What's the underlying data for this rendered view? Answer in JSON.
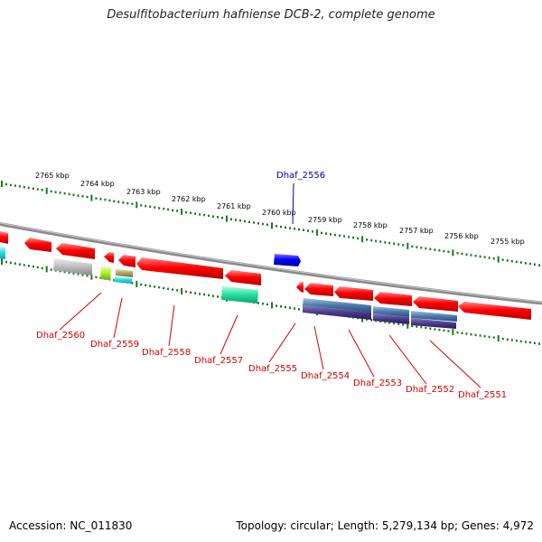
{
  "title": "Desulfitobacterium hafniense DCB-2, complete genome",
  "footer": {
    "accession": "Accession: NC_011830",
    "summary": "Topology: circular; Length: 5,279,134 bp; Genes: 4,972"
  },
  "scale_labels": [
    "2765 kbp",
    "2764 kbp",
    "2763 kbp",
    "2762 kbp",
    "2761 kbp",
    "2760 kbp",
    "2759 kbp",
    "2758 kbp",
    "2757 kbp",
    "2756 kbp",
    "2755 kbp"
  ],
  "gene_labels_top": [
    {
      "name": "Dhaf_2556",
      "color": "#0000b4"
    }
  ],
  "gene_labels_bottom": [
    {
      "name": "Dhaf_2560",
      "color": "#d10000"
    },
    {
      "name": "Dhaf_2559",
      "color": "#d10000"
    },
    {
      "name": "Dhaf_2558",
      "color": "#d10000"
    },
    {
      "name": "Dhaf_2557",
      "color": "#d10000"
    },
    {
      "name": "Dhaf_2555",
      "color": "#d10000"
    },
    {
      "name": "Dhaf_2554",
      "color": "#d10000"
    },
    {
      "name": "Dhaf_2553",
      "color": "#d10000"
    },
    {
      "name": "Dhaf_2552",
      "color": "#d10000"
    },
    {
      "name": "Dhaf_2551",
      "color": "#d10000"
    }
  ],
  "colors": {
    "backbone": "#8a8a8a",
    "tick": "#1a7a1a",
    "gene_reverse": "#ff0000",
    "gene_forward": "#0000ff"
  }
}
